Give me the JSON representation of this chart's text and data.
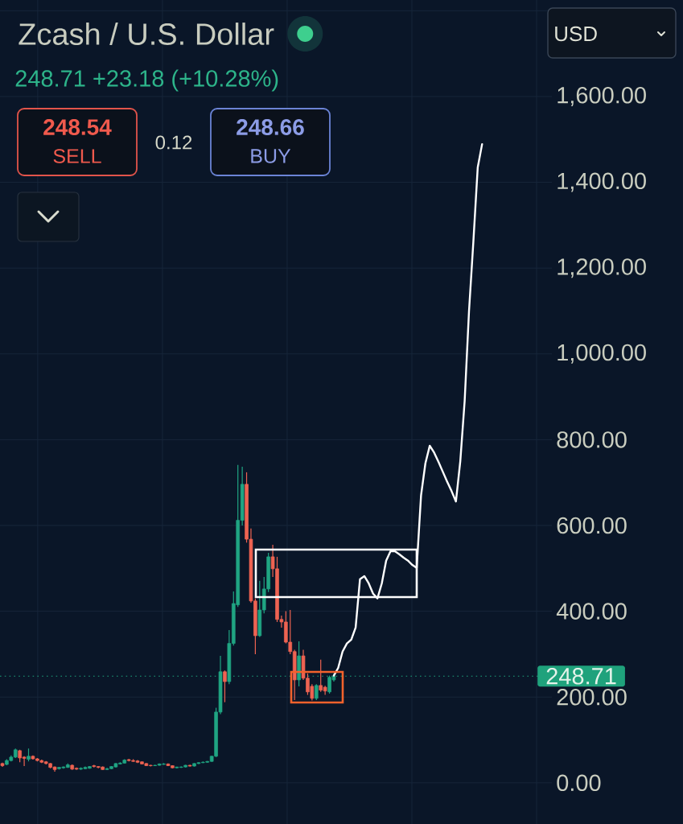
{
  "chart_data": {
    "type": "candlestick",
    "title": "Zcash / U.S. Dollar",
    "subtitle": "248.71 +23.18 (+10.28%)",
    "categories": [
      null,
      null,
      null,
      null,
      null,
      null,
      null,
      null,
      null,
      null,
      null,
      null,
      null,
      null,
      null,
      null,
      null,
      null,
      null,
      null,
      null,
      null,
      null,
      null,
      null,
      null,
      null,
      null,
      null,
      null,
      null,
      null,
      null,
      null,
      null,
      null,
      null,
      null,
      null,
      null,
      null,
      null,
      null,
      null,
      null,
      null,
      null,
      null,
      null,
      null,
      null,
      null,
      null,
      null,
      null,
      null,
      null,
      null,
      null,
      null,
      null,
      null,
      null,
      null,
      null,
      null,
      null,
      null,
      null,
      null,
      null,
      null,
      null,
      null,
      null,
      null,
      null,
      null,
      null,
      null,
      null,
      null,
      null,
      null,
      null,
      null,
      null,
      null,
      null,
      null,
      null,
      null,
      null,
      null,
      null,
      null,
      null,
      null,
      null,
      null,
      null,
      null,
      null,
      null,
      null,
      null,
      null,
      null,
      null,
      null,
      null
    ],
    "ohlc": [
      [
        45,
        47,
        37,
        40
      ],
      [
        43,
        55,
        41,
        52
      ],
      [
        52,
        64,
        50,
        60
      ],
      [
        60,
        80,
        58,
        77
      ],
      [
        75,
        77,
        48,
        58
      ],
      [
        60,
        62,
        39,
        57
      ],
      [
        55,
        80,
        50,
        62
      ],
      [
        62,
        64,
        54,
        56
      ],
      [
        56,
        58,
        50,
        52
      ],
      [
        52,
        54,
        46,
        48
      ],
      [
        49,
        51,
        43,
        45
      ],
      [
        45,
        46,
        34,
        36
      ],
      [
        37,
        38,
        26,
        31
      ],
      [
        33,
        37,
        31,
        36
      ],
      [
        35,
        38,
        33,
        37
      ],
      [
        36,
        45,
        35,
        42
      ],
      [
        41,
        43,
        30,
        32
      ],
      [
        34,
        36,
        30,
        32
      ],
      [
        32,
        36,
        30,
        34
      ],
      [
        33,
        38,
        32,
        36
      ],
      [
        34,
        39,
        33,
        38
      ],
      [
        40,
        42,
        36,
        38
      ],
      [
        38,
        39,
        34,
        36
      ],
      [
        37,
        38,
        30,
        31
      ],
      [
        31,
        35,
        30,
        33
      ],
      [
        33,
        39,
        32,
        38
      ],
      [
        37,
        46,
        36,
        45
      ],
      [
        44,
        48,
        43,
        46
      ],
      [
        46,
        55,
        45,
        53
      ],
      [
        54,
        56,
        50,
        52
      ],
      [
        52,
        55,
        49,
        50
      ],
      [
        51,
        53,
        46,
        48
      ],
      [
        49,
        50,
        43,
        44
      ],
      [
        45,
        46,
        39,
        40
      ],
      [
        41,
        42,
        38,
        40
      ],
      [
        40,
        42,
        39,
        41
      ],
      [
        41,
        45,
        40,
        44
      ],
      [
        43,
        46,
        42,
        44
      ],
      [
        44,
        45,
        39,
        40
      ],
      [
        40,
        41,
        34,
        35
      ],
      [
        35,
        37,
        34,
        37
      ],
      [
        36,
        38,
        35,
        37
      ],
      [
        37,
        42,
        36,
        41
      ],
      [
        41,
        42,
        38,
        39
      ],
      [
        39,
        46,
        38,
        45
      ],
      [
        45,
        48,
        44,
        47
      ],
      [
        47,
        50,
        46,
        48
      ],
      [
        48,
        51,
        47,
        50
      ],
      [
        50,
        63,
        49,
        62
      ],
      [
        62,
        175,
        60,
        165
      ],
      [
        165,
        296,
        160,
        259
      ],
      [
        259,
        262,
        188,
        236
      ],
      [
        236,
        356,
        230,
        325
      ],
      [
        325,
        446,
        320,
        418
      ],
      [
        415,
        741,
        410,
        612
      ],
      [
        612,
        737,
        600,
        696
      ],
      [
        696,
        724,
        560,
        568
      ],
      [
        568,
        593,
        420,
        424
      ],
      [
        424,
        430,
        300,
        343
      ],
      [
        343,
        471,
        340,
        403
      ],
      [
        403,
        480,
        395,
        452
      ],
      [
        452,
        536,
        445,
        527
      ],
      [
        527,
        555,
        480,
        499
      ],
      [
        499,
        527,
        375,
        381
      ],
      [
        381,
        390,
        362,
        375
      ],
      [
        375,
        400,
        325,
        328
      ],
      [
        328,
        403,
        300,
        306
      ],
      [
        306,
        310,
        193,
        240
      ],
      [
        240,
        330,
        225,
        296
      ],
      [
        296,
        310,
        240,
        244
      ],
      [
        244,
        255,
        205,
        212
      ],
      [
        225,
        230,
        192,
        197
      ],
      [
        197,
        230,
        193,
        227
      ],
      [
        227,
        287,
        212,
        216
      ],
      [
        223,
        226,
        205,
        214
      ],
      [
        212,
        250,
        208,
        246
      ],
      [
        240,
        255,
        236,
        248.71
      ],
      null,
      null,
      null,
      null,
      null,
      null,
      null,
      null,
      null,
      null,
      null,
      null,
      null,
      null,
      null,
      null,
      null,
      null,
      null,
      null,
      null,
      null,
      null,
      null,
      null,
      null,
      null,
      null,
      null,
      null,
      null,
      null,
      null,
      null
    ],
    "colors": [
      "#ee6352",
      "#20a583",
      "#20a583",
      "#20a583",
      "#ee6352",
      "#ee6352",
      "#20a583",
      "#ee6352",
      "#ee6352",
      "#ee6352",
      "#ee6352",
      "#ee6352",
      "#ee6352",
      "#20a583",
      "#20a583",
      "#20a583",
      "#ee6352",
      "#ee6352",
      "#20a583",
      "#20a583",
      "#20a583",
      "#ee6352",
      "#ee6352",
      "#ee6352",
      "#20a583",
      "#20a583",
      "#20a583",
      "#20a583",
      "#20a583",
      "#ee6352",
      "#ee6352",
      "#ee6352",
      "#ee6352",
      "#ee6352",
      "#ee6352",
      "#20a583",
      "#20a583",
      "#20a583",
      "#ee6352",
      "#ee6352",
      "#20a583",
      "#20a583",
      "#20a583",
      "#ee6352",
      "#20a583",
      "#20a583",
      "#20a583",
      "#20a583",
      "#20a583",
      "#20a583",
      "#20a583",
      "#ee6352",
      "#20a583",
      "#20a583",
      "#20a583",
      "#20a583",
      "#ee6352",
      "#ee6352",
      "#ee6352",
      "#20a583",
      "#20a583",
      "#20a583",
      "#ee6352",
      "#ee6352",
      "#ee6352",
      "#ee6352",
      "#ee6352",
      "#ee6352",
      "#20a583",
      "#ee6352",
      "#ee6352",
      "#ee6352",
      "#20a583",
      "#ee6352",
      "#ee6352",
      "#20a583",
      "#20a583",
      null,
      null,
      null,
      null,
      null,
      null,
      null,
      null,
      null,
      null,
      null,
      null,
      null,
      null,
      null,
      null,
      null,
      null,
      null,
      null,
      null,
      null,
      null,
      null,
      null,
      null,
      null,
      null,
      null,
      null,
      null,
      null,
      null,
      null
    ],
    "series": [
      {
        "type": "line",
        "color": "#ffffff",
        "values": [
          null,
          null,
          null,
          null,
          null,
          null,
          null,
          null,
          null,
          null,
          null,
          null,
          null,
          null,
          null,
          null,
          null,
          null,
          null,
          null,
          null,
          null,
          null,
          null,
          null,
          null,
          null,
          null,
          null,
          null,
          null,
          null,
          null,
          null,
          null,
          null,
          null,
          null,
          null,
          null,
          null,
          null,
          null,
          null,
          null,
          null,
          null,
          null,
          null,
          null,
          null,
          null,
          null,
          null,
          null,
          null,
          null,
          null,
          null,
          null,
          null,
          null,
          null,
          null,
          null,
          null,
          null,
          null,
          null,
          null,
          null,
          null,
          null,
          null,
          null,
          null,
          250,
          268,
          306,
          325,
          334,
          362,
          475,
          482,
          465,
          441,
          430,
          465,
          518,
          540,
          540,
          533,
          525,
          518,
          508,
          501,
          670,
          745,
          786,
          770,
          748,
          725,
          702,
          680,
          656,
          750,
          890,
          1100,
          1262,
          1435,
          1489
        ]
      }
    ],
    "ylim": [
      -96,
      1825
    ],
    "yticks": [
      {
        "value": 0,
        "label": "0.00"
      },
      {
        "value": 200,
        "label": "200.00"
      },
      {
        "value": 400,
        "label": "400.00"
      },
      {
        "value": 600,
        "label": "600.00"
      },
      {
        "value": 800,
        "label": "800.00"
      },
      {
        "value": 1000,
        "label": "1,000.00"
      },
      {
        "value": 1200,
        "label": "1,200.00"
      },
      {
        "value": 1400,
        "label": "1,400.00"
      },
      {
        "value": 1600,
        "label": "1,600.00"
      },
      {
        "value": 1800,
        "label": null
      }
    ],
    "grid": true,
    "tick_labels": "y",
    "ref_lines": [
      {
        "axis": "y",
        "value": 248.71,
        "label": "248.71",
        "color": "#1fa27c",
        "line_style": "dotted"
      }
    ],
    "annotations": [
      "248.54",
      "SELL",
      "0.12",
      "248.66",
      "BUY",
      "USD"
    ]
  }
}
